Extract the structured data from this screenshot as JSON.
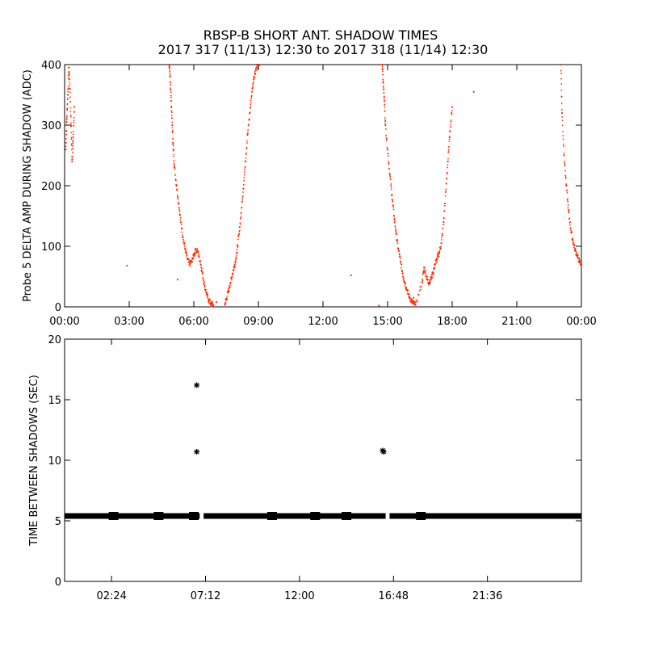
{
  "title": {
    "line1": "RBSP-B SHORT ANT. SHADOW TIMES",
    "line2": "2017 317 (11/13) 12:30 to 2017 318 (11/14) 12:30"
  },
  "colors": {
    "series": "#ff2a00",
    "axis": "#000000"
  },
  "chart_data": [
    {
      "type": "scatter",
      "ylabel": "Probe 5 DELTA AMP DURING SHADOW (ADC)",
      "xlabel": "",
      "xlim": [
        0,
        24
      ],
      "ylim": [
        0,
        400
      ],
      "xticks": [
        0,
        3,
        6,
        9,
        12,
        15,
        18,
        21,
        24
      ],
      "xtick_labels": [
        "00:00",
        "03:00",
        "06:00",
        "09:00",
        "12:00",
        "15:00",
        "18:00",
        "21:00",
        "00:00"
      ],
      "yticks": [
        0,
        100,
        200,
        300,
        400
      ],
      "ytick_labels": [
        "0",
        "100",
        "200",
        "300",
        "400"
      ],
      "series": [
        {
          "color": "#ff2a00",
          "x": [
            0.05,
            0.1,
            0.15,
            0.2,
            0.25,
            0.3,
            0.35,
            0.4,
            0.45,
            4.85,
            4.9,
            4.95,
            5.0,
            5.05,
            5.1,
            5.2,
            5.3,
            5.4,
            5.5,
            5.6,
            5.7,
            5.8,
            5.9,
            6.0,
            6.1,
            6.2,
            6.3,
            6.4,
            6.5,
            6.6,
            6.7,
            6.8,
            6.9,
            7.45,
            7.5,
            7.6,
            7.7,
            7.8,
            7.9,
            8.0,
            8.1,
            8.2,
            8.3,
            8.4,
            8.5,
            8.6,
            8.7,
            8.8,
            8.9,
            9.0,
            9.05,
            14.75,
            14.8,
            14.85,
            14.9,
            15.0,
            15.1,
            15.2,
            15.3,
            15.4,
            15.5,
            15.6,
            15.7,
            15.8,
            15.9,
            16.0,
            16.1,
            16.2,
            16.3,
            16.6,
            16.7,
            16.8,
            16.9,
            17.0,
            17.1,
            17.2,
            17.3,
            17.4,
            17.5,
            17.6,
            17.7,
            17.8,
            17.9,
            18.0,
            23.05,
            23.1,
            23.2,
            23.3,
            23.4,
            23.5,
            23.6,
            23.7,
            23.8,
            23.9,
            24.0
          ],
          "y": [
            260,
            310,
            350,
            395,
            360,
            300,
            240,
            280,
            330,
            400,
            380,
            340,
            300,
            260,
            230,
            200,
            170,
            140,
            115,
            95,
            80,
            70,
            75,
            85,
            95,
            90,
            75,
            55,
            35,
            20,
            10,
            5,
            3,
            4,
            12,
            25,
            40,
            55,
            70,
            90,
            120,
            155,
            195,
            240,
            285,
            320,
            355,
            380,
            395,
            400,
            400,
            400,
            370,
            340,
            300,
            260,
            220,
            185,
            150,
            120,
            95,
            75,
            55,
            40,
            28,
            18,
            10,
            5,
            3,
            40,
            65,
            50,
            40,
            45,
            55,
            70,
            80,
            90,
            105,
            140,
            190,
            240,
            290,
            330,
            400,
            320,
            250,
            200,
            160,
            130,
            110,
            95,
            85,
            75,
            70
          ]
        }
      ],
      "isolated_points": {
        "x": [
          2.9,
          5.25,
          7.05,
          13.3,
          14.6,
          16.2,
          19.0
        ],
        "y": [
          68,
          45,
          8,
          52,
          2,
          15,
          355
        ]
      }
    },
    {
      "type": "scatter",
      "ylabel": "TIME BETWEEN SHADOWS (SEC)",
      "xlabel": "",
      "xlim": [
        0,
        26.4
      ],
      "ylim": [
        0,
        20
      ],
      "xticks": [
        2.4,
        7.2,
        12.0,
        16.8,
        21.6
      ],
      "xtick_labels": [
        "02:24",
        "07:12",
        "12:00",
        "16:48",
        "21:36"
      ],
      "yticks": [
        0,
        5,
        10,
        15,
        20
      ],
      "ytick_labels": [
        "0",
        "5",
        "10",
        "15",
        "20"
      ],
      "series": [
        {
          "color": "#000000",
          "marker": "asterisk",
          "x": [
            6.75,
            6.75,
            16.25,
            16.3
          ],
          "y": [
            16.2,
            10.7,
            10.8,
            10.7
          ]
        }
      ],
      "bands": [
        {
          "x_range": [
            0.0,
            6.9
          ],
          "y": 5.4
        },
        {
          "x_range": [
            7.1,
            16.4
          ],
          "y": 5.4
        },
        {
          "x_range": [
            16.6,
            26.4
          ],
          "y": 5.4
        }
      ],
      "band_markers": [
        2.5,
        4.8,
        6.6,
        10.6,
        12.8,
        14.4,
        18.2
      ]
    }
  ]
}
